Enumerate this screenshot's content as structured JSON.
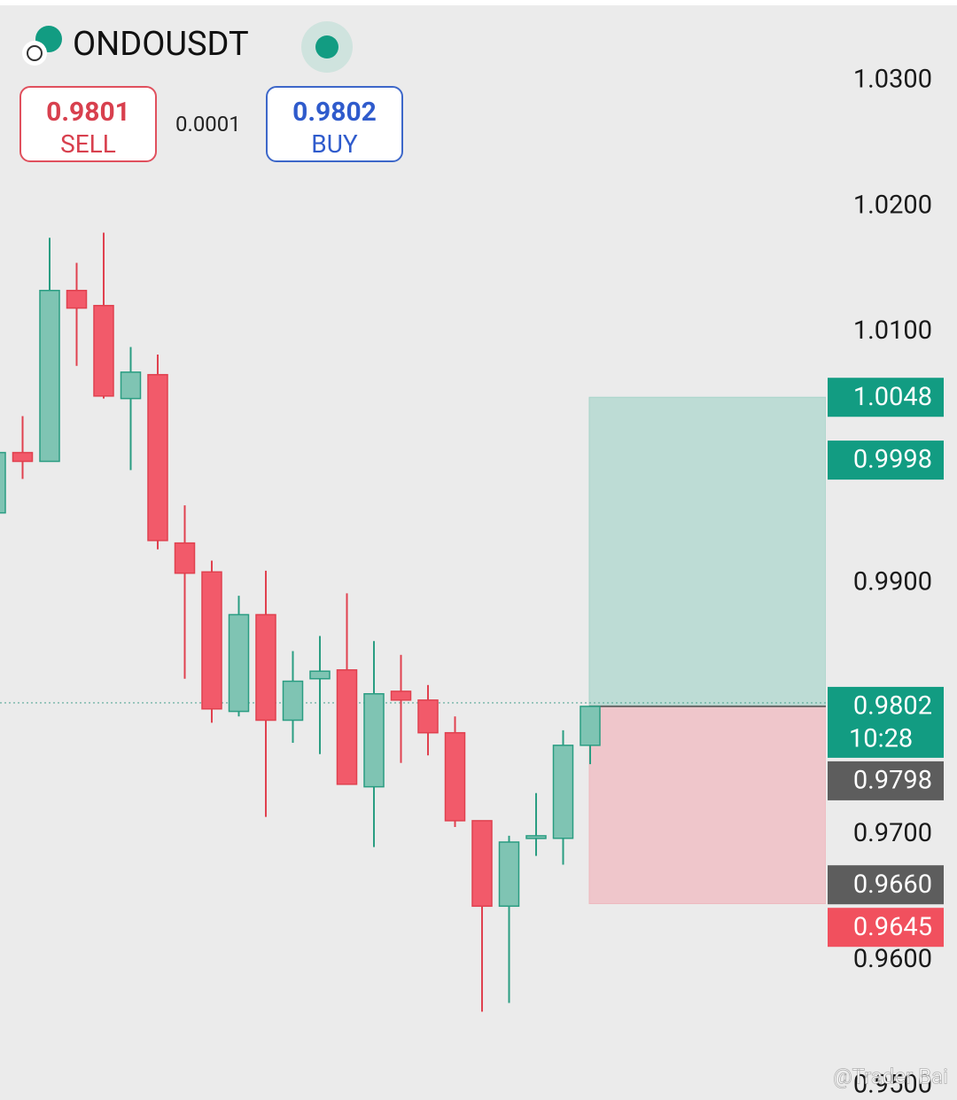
{
  "header": {
    "symbol": "ONDOUSDT",
    "sell_price": "0.9801",
    "sell_label": "SELL",
    "spread": "0.0001",
    "buy_price": "0.9802",
    "buy_label": "BUY"
  },
  "chart_data": {
    "type": "candlestick",
    "open": [
      0.9956,
      1.0004,
      0.9997,
      1.0133,
      1.0121,
      1.0047,
      1.0066,
      0.9932,
      0.9909,
      0.9798,
      0.9875,
      0.9791,
      0.9824,
      0.9831,
      0.9738,
      0.9814,
      0.9807,
      0.9781,
      0.9711,
      0.9643,
      0.9697,
      0.9697,
      0.9771
    ],
    "high": [
      1.0004,
      1.0033,
      1.0175,
      1.0155,
      1.0179,
      1.0088,
      1.0082,
      0.9962,
      0.9918,
      0.989,
      0.991,
      0.9846,
      0.9858,
      0.9892,
      0.9854,
      0.9843,
      0.9819,
      0.9794,
      0.9711,
      0.9699,
      0.9733,
      0.9783,
      0.9802
    ],
    "low": [
      0.9956,
      0.9983,
      0.9997,
      1.0073,
      1.0047,
      0.999,
      0.9927,
      0.9824,
      0.9789,
      0.9794,
      0.9714,
      0.9773,
      0.9764,
      0.974,
      0.969,
      0.9757,
      0.9763,
      0.9706,
      0.9559,
      0.9566,
      0.9683,
      0.9676,
      0.9756
    ],
    "close": [
      1.0004,
      0.9997,
      1.0133,
      1.0119,
      1.0049,
      1.0068,
      0.9934,
      0.9908,
      0.98,
      0.9875,
      0.9791,
      0.9822,
      0.983,
      0.974,
      0.9812,
      0.9807,
      0.9781,
      0.9711,
      0.9643,
      0.9694,
      0.9699,
      0.9771,
      0.9802
    ],
    "up_color": "#7fc4b3",
    "down_color": "#f25a6a",
    "ylim": [
      0.95,
      1.03
    ],
    "yticks": [
      {
        "value": 1.03,
        "label": "1.0300"
      },
      {
        "value": 1.02,
        "label": "1.0200"
      },
      {
        "value": 1.01,
        "label": "1.0100"
      },
      {
        "value": 0.99,
        "label": "0.9900"
      },
      {
        "value": 0.97,
        "label": "0.9700"
      },
      {
        "value": 0.96,
        "label": "0.9600"
      },
      {
        "value": 0.95,
        "label": "0.9500"
      }
    ],
    "price_labels": [
      {
        "value": 1.0048,
        "label": "1.0048",
        "color": "#129c82"
      },
      {
        "value": 0.9998,
        "label": "0.9998",
        "color": "#129c82"
      },
      {
        "value": 0.9802,
        "label": "0.9802",
        "color": "#129c82",
        "countdown": "10:28"
      },
      {
        "value": 0.9798,
        "label": "0.9798",
        "color": "#5d5d5d"
      },
      {
        "value": 0.966,
        "label": "0.9660",
        "color": "#5d5d5d"
      },
      {
        "value": 0.9645,
        "label": "0.9645",
        "color": "#f1505e"
      }
    ],
    "watermark": "@Trader Bai"
  }
}
